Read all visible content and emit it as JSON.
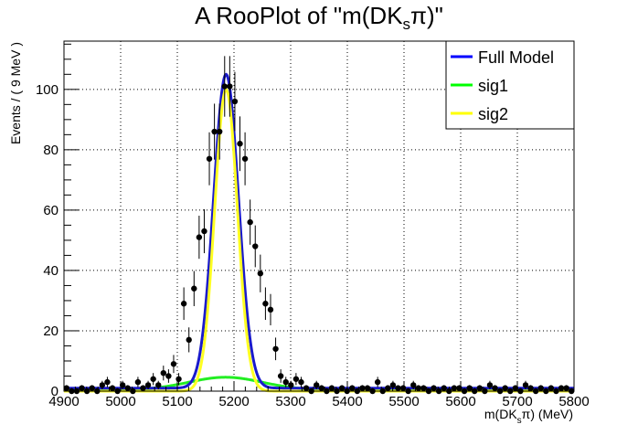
{
  "chart_data": {
    "type": "line",
    "title": "A RooPlot of \"m(DKsπ)\"",
    "title_parts": {
      "prefix": "A RooPlot of \"m(DK",
      "sub": "s",
      "suffix": "π)\""
    },
    "xlabel": "m(DKsπ) (MeV)",
    "xlabel_parts": {
      "prefix": "m(DK",
      "sub": "s",
      "suffix": "π) (MeV)"
    },
    "ylabel": "Events / ( 9 MeV )",
    "xlim": [
      4900,
      5800
    ],
    "ylim": [
      0,
      116
    ],
    "xticks": [
      "4900",
      "5000",
      "5100",
      "5200",
      "5300",
      "5400",
      "5500",
      "5600",
      "5700",
      "5800"
    ],
    "yticks": [
      "0",
      "20",
      "40",
      "60",
      "80",
      "100"
    ],
    "grid": true,
    "legend_position": "top-right",
    "legend": [
      {
        "label": "Full Model",
        "color": "#0000ff"
      },
      {
        "label": "sig1",
        "color": "#00ff00"
      },
      {
        "label": "sig2",
        "color": "#ffff00"
      }
    ],
    "curves": {
      "full": {
        "name": "Full Model",
        "color": "#1a1acc",
        "mean": 5186,
        "sigma": 22,
        "peak": 104,
        "baseline": 1.0
      },
      "sig1": {
        "name": "sig1",
        "color": "#22ee22",
        "mean": 5185,
        "sigma": 65,
        "peak": 4.2,
        "baseline": 0.4
      },
      "sig2": {
        "name": "sig2",
        "color": "#ffff22",
        "mean": 5186,
        "sigma": 20,
        "peak": 100,
        "baseline": 0
      }
    },
    "points": {
      "name": "data",
      "color": "#000000",
      "x": [
        4904.5,
        4913.5,
        4922.5,
        4931.5,
        4940.5,
        4949.5,
        4958.5,
        4967.5,
        4976.5,
        4985.5,
        4994.5,
        5003.5,
        5012.5,
        5021.5,
        5030.5,
        5039.5,
        5048.5,
        5057.5,
        5066.5,
        5075.5,
        5084.5,
        5093.5,
        5102.5,
        5111.5,
        5120.5,
        5129.5,
        5138.5,
        5147.5,
        5156.5,
        5165.5,
        5174.5,
        5183.5,
        5192.5,
        5201.5,
        5210.5,
        5219.5,
        5228.5,
        5237.5,
        5246.5,
        5255.5,
        5264.5,
        5273.5,
        5282.5,
        5291.5,
        5300.5,
        5309.5,
        5318.5,
        5327.5,
        5336.5,
        5345.5,
        5354.5,
        5363.5,
        5372.5,
        5381.5,
        5390.5,
        5399.5,
        5408.5,
        5417.5,
        5426.5,
        5435.5,
        5444.5,
        5453.5,
        5462.5,
        5471.5,
        5480.5,
        5489.5,
        5498.5,
        5507.5,
        5516.5,
        5525.5,
        5534.5,
        5543.5,
        5552.5,
        5561.5,
        5570.5,
        5579.5,
        5588.5,
        5597.5,
        5606.5,
        5615.5,
        5624.5,
        5633.5,
        5642.5,
        5651.5,
        5660.5,
        5669.5,
        5678.5,
        5687.5,
        5696.5,
        5705.5,
        5714.5,
        5723.5,
        5732.5,
        5741.5,
        5750.5,
        5759.5,
        5768.5,
        5777.5,
        5786.5,
        5795.5
      ],
      "y": [
        1,
        0,
        0,
        1,
        0,
        1,
        0,
        2,
        3,
        1,
        0,
        2,
        1,
        0,
        3,
        1,
        2,
        4,
        2,
        6,
        5,
        9,
        4,
        29,
        17,
        34,
        51,
        53,
        77,
        86,
        86,
        101,
        101,
        96,
        82,
        77,
        56,
        48,
        39,
        29,
        27,
        14,
        5,
        3,
        2,
        4,
        3,
        1,
        0,
        2,
        1,
        0,
        1,
        0,
        1,
        0,
        1,
        0,
        1,
        1,
        0,
        3,
        0,
        1,
        2,
        1,
        1,
        0,
        2,
        1,
        1,
        0,
        1,
        0,
        1,
        0,
        1,
        1,
        0,
        1,
        0,
        1,
        0,
        2,
        1,
        0,
        1,
        0,
        1,
        0,
        2,
        1,
        0,
        1,
        0,
        1,
        0,
        1,
        1,
        0
      ]
    }
  }
}
